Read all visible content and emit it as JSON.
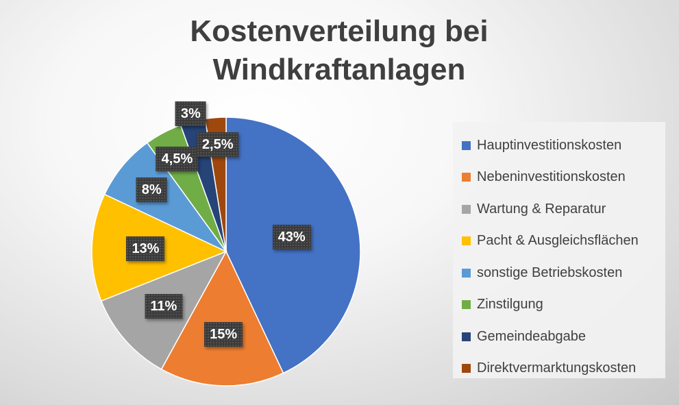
{
  "chart_data": {
    "type": "pie",
    "title": "Kostenverteilung bei Windkraftanlagen",
    "title_lines": [
      "Kostenverteilung bei",
      "Windkraftanlagen"
    ],
    "categories": [
      "Hauptinvestitionskosten",
      "Nebeninvestitionskosten",
      "Wartung & Reparatur",
      "Pacht & Ausgleichsflächen",
      "sonstige Betriebskosten",
      "Zinstilgung",
      "Gemeindeabgabe",
      "Direktvermarktungskosten"
    ],
    "values": [
      43,
      15,
      11,
      13,
      8,
      4.5,
      3,
      2.5
    ],
    "data_labels": [
      "43%",
      "15%",
      "11%",
      "13%",
      "8%",
      "4,5%",
      "3%",
      "2,5%"
    ],
    "colors": [
      "#4472C4",
      "#ED7D31",
      "#A5A5A5",
      "#FFC000",
      "#5B9BD5",
      "#70AD47",
      "#264478",
      "#9E480E"
    ],
    "legend_position": "right",
    "start_angle": "12 o'clock",
    "direction": "clockwise"
  }
}
